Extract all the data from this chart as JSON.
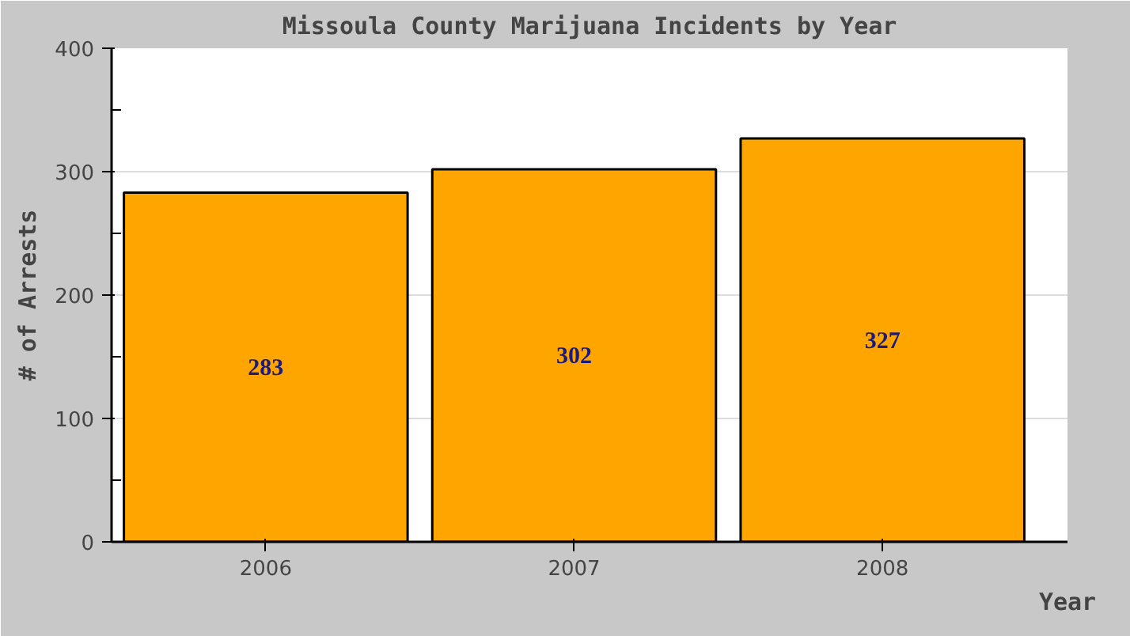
{
  "chart_data": {
    "type": "bar",
    "title": "Missoula County Marijuana Incidents by Year",
    "xlabel": "Year",
    "ylabel": "# of Arrests",
    "categories": [
      "2006",
      "2007",
      "2008"
    ],
    "values": [
      283,
      302,
      327
    ],
    "color": "#ffa500",
    "data_labels": true,
    "ylim": [
      0,
      400
    ],
    "yticks": [
      0,
      100,
      200,
      300,
      400
    ],
    "grid": "y"
  }
}
